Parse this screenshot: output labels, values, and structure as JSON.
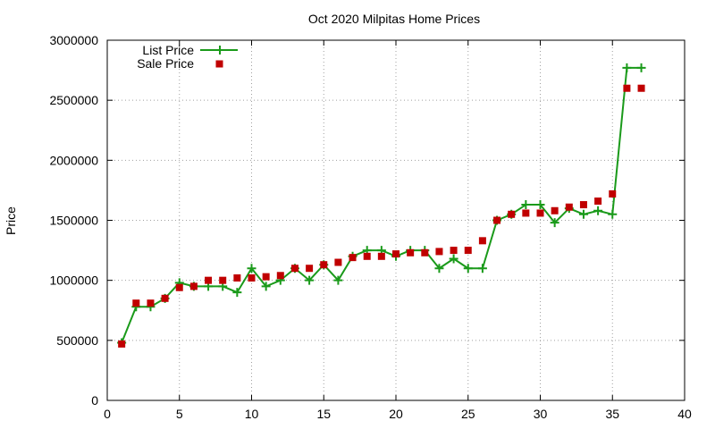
{
  "chart_data": {
    "type": "line",
    "title": "Oct 2020 Milpitas Home Prices",
    "xlabel": "",
    "ylabel": "Price",
    "xlim": [
      0,
      40
    ],
    "ylim": [
      0,
      3000000
    ],
    "x_ticks": [
      0,
      5,
      10,
      15,
      20,
      25,
      30,
      35,
      40
    ],
    "y_ticks": [
      0,
      500000,
      1000000,
      1500000,
      2000000,
      2500000,
      3000000
    ],
    "x_tick_labels": [
      "0",
      "5",
      "10",
      "15",
      "20",
      "25",
      "30",
      "35",
      "40"
    ],
    "y_tick_labels": [
      "0",
      "500000",
      "1000000",
      "1500000",
      "2000000",
      "2500000",
      "3000000"
    ],
    "grid": true,
    "legend_position": "top-left",
    "series": [
      {
        "name": "List Price",
        "style": "line+plus-markers",
        "color": "#1a9a1a",
        "x": [
          1,
          2,
          3,
          4,
          5,
          6,
          7,
          8,
          9,
          10,
          11,
          12,
          13,
          14,
          15,
          16,
          17,
          18,
          19,
          20,
          21,
          22,
          23,
          24,
          25,
          26,
          27,
          28,
          29,
          30,
          31,
          32,
          33,
          34,
          35,
          36,
          37
        ],
        "values": [
          480000,
          780000,
          780000,
          850000,
          980000,
          950000,
          950000,
          950000,
          900000,
          1100000,
          950000,
          1000000,
          1100000,
          1000000,
          1130000,
          1000000,
          1200000,
          1250000,
          1250000,
          1200000,
          1250000,
          1250000,
          1100000,
          1180000,
          1100000,
          1100000,
          1500000,
          1550000,
          1630000,
          1630000,
          1480000,
          1600000,
          1550000,
          1580000,
          1550000,
          2770000,
          2770000
        ]
      },
      {
        "name": "Sale Price",
        "style": "square-markers",
        "color": "#c00000",
        "x": [
          1,
          2,
          3,
          4,
          5,
          6,
          7,
          8,
          9,
          10,
          11,
          12,
          13,
          14,
          15,
          16,
          17,
          18,
          19,
          20,
          21,
          22,
          23,
          24,
          25,
          26,
          27,
          28,
          29,
          30,
          31,
          32,
          33,
          34,
          35,
          36,
          37
        ],
        "values": [
          470000,
          810000,
          810000,
          850000,
          940000,
          950000,
          1000000,
          1000000,
          1020000,
          1020000,
          1030000,
          1040000,
          1100000,
          1100000,
          1130000,
          1150000,
          1190000,
          1200000,
          1200000,
          1220000,
          1230000,
          1230000,
          1240000,
          1250000,
          1250000,
          1330000,
          1500000,
          1550000,
          1560000,
          1560000,
          1580000,
          1610000,
          1630000,
          1660000,
          1720000,
          2600000,
          2600000
        ]
      }
    ]
  }
}
